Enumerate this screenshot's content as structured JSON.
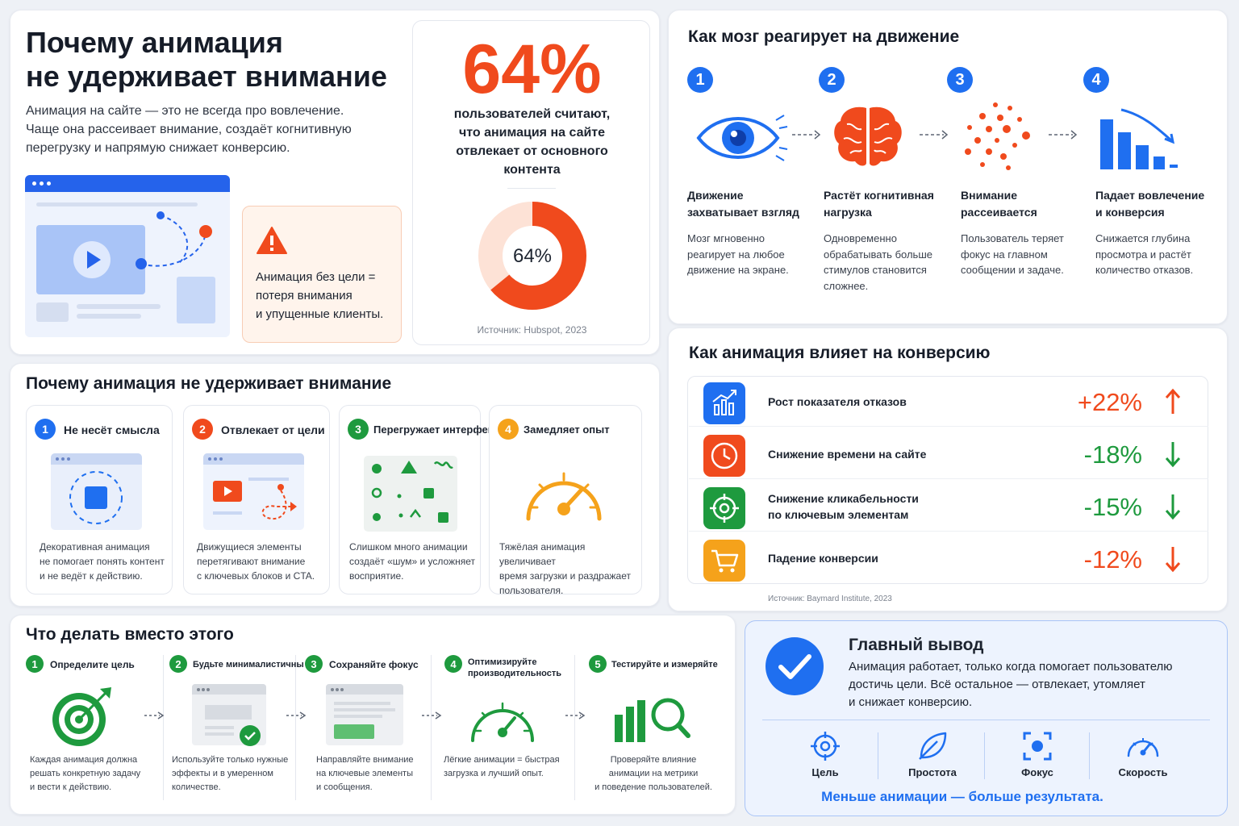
{
  "intro": {
    "title_line1": "Почему анимация",
    "title_line2": "не удерживает внимание",
    "desc_line1": "Анимация на сайте — это не всегда про вовлечение.",
    "desc_line2": "Чаще она рассеивает внимание, создаёт когнитивную",
    "desc_line3": "перегрузку и напрямую снижает конверсию.",
    "warning_line1": "Анимация без цели =",
    "warning_line2": "потеря внимания",
    "warning_line3": "и упущенные клиенты."
  },
  "stat": {
    "big": "64%",
    "text_line1": "пользователей считают,",
    "text_line2": "что анимация на сайте",
    "text_line3": "отвлекает от основного",
    "text_line4": "контента",
    "donut_label": "64%",
    "donut_value": 64,
    "source": "Источник: Hubspot, 2023"
  },
  "brain": {
    "title": "Как мозг реагирует на движение",
    "steps": [
      {
        "n": "1",
        "title1": "Движение",
        "title2": "захватывает взгляд",
        "d1": "Мозг мгновенно",
        "d2": "реагирует на любое",
        "d3": "движение на экране.",
        "d4": "",
        "icon": "eye-icon"
      },
      {
        "n": "2",
        "title1": "Растёт когнитивная",
        "title2": "нагрузка",
        "d1": "Одновременно",
        "d2": "обрабатывать больше",
        "d3": "стимулов становится",
        "d4": "сложнее.",
        "icon": "brain-icon"
      },
      {
        "n": "3",
        "title1": "Внимание",
        "title2": "рассеивается",
        "d1": "Пользователь теряет",
        "d2": "фокус на главном",
        "d3": "сообщении и задаче.",
        "d4": "",
        "icon": "scatter-dots-icon"
      },
      {
        "n": "4",
        "title1": "Падает вовлечение",
        "title2": "и конверсия",
        "d1": "Снижается глубина",
        "d2": "просмотра и растёт",
        "d3": "количество отказов.",
        "d4": "",
        "icon": "declining-bars-icon"
      }
    ]
  },
  "reasons": {
    "title": "Почему анимация не удерживает внимание",
    "items": [
      {
        "n": "1",
        "title": "Не несёт смысла",
        "d1": "Декоративная анимация",
        "d2": "не помогает понять контент",
        "d3": "и не ведёт к действию.",
        "color": "#1f6ff0"
      },
      {
        "n": "2",
        "title": "Отвлекает от цели",
        "d1": "Движущиеся элементы",
        "d2": "перетягивают внимание",
        "d3": "с ключевых блоков и CTA.",
        "color": "#f04a1d"
      },
      {
        "n": "3",
        "title": "Перегружает интерфейс",
        "d1": "Слишком много анимации",
        "d2": "создаёт «шум» и усложняет",
        "d3": "восприятие.",
        "color": "#1e9a3e"
      },
      {
        "n": "4",
        "title": "Замедляет опыт",
        "d1": "Тяжёлая анимация увеличивает",
        "d2": "время загрузки и раздражает",
        "d3": "пользователя.",
        "color": "#f5a21b"
      }
    ]
  },
  "conversion": {
    "title": "Как анимация влияет на конверсию",
    "rows": [
      {
        "l1": "Рост показателя отказов",
        "l2": "",
        "value": "+22%",
        "dir": "up",
        "color": "#f04a1d",
        "icon_bg": "#1f6ff0",
        "icon": "chart-growth-icon"
      },
      {
        "l1": "Снижение времени на сайте",
        "l2": "",
        "value": "-18%",
        "dir": "down",
        "color": "#1e9a3e",
        "icon_bg": "#f04a1d",
        "icon": "clock-icon"
      },
      {
        "l1": "Снижение кликабельности",
        "l2": "по ключевым элементам",
        "value": "-15%",
        "dir": "down",
        "color": "#1e9a3e",
        "icon_bg": "#1e9a3e",
        "icon": "target-icon"
      },
      {
        "l1": "Падение конверсии",
        "l2": "",
        "value": "-12%",
        "dir": "down",
        "color": "#f04a1d",
        "icon_bg": "#f5a21b",
        "icon": "cart-icon"
      }
    ],
    "source": "Источник: Baymard Institute, 2023"
  },
  "todo": {
    "title": "Что делать вместо этого",
    "steps": [
      {
        "n": "1",
        "t1": "Определите цель",
        "t2": "",
        "d1": "Каждая анимация должна",
        "d2": "решать конкретную задачу",
        "d3": "и вести к действию."
      },
      {
        "n": "2",
        "t1": "Будьте минималистичны",
        "t2": "",
        "d1": "Используйте только нужные",
        "d2": "эффекты и в умеренном",
        "d3": "количестве."
      },
      {
        "n": "3",
        "t1": "Сохраняйте фокус",
        "t2": "",
        "d1": "Направляйте внимание",
        "d2": "на ключевые элементы",
        "d3": "и сообщения."
      },
      {
        "n": "4",
        "t1": "Оптимизируйте",
        "t2": "производительность",
        "d1": "Лёгкие анимации = быстрая",
        "d2": "загрузка и лучший опыт.",
        "d3": ""
      },
      {
        "n": "5",
        "t1": "Тестируйте и измеряйте",
        "t2": "",
        "d1": "Проверяйте влияние",
        "d2": "анимации на метрики",
        "d3": "и поведение пользователей."
      }
    ]
  },
  "summary": {
    "title": "Главный вывод",
    "line1": "Анимация работает, только когда помогает пользователю",
    "line2": "достичь цели. Всё остальное — отвлекает, утомляет",
    "line3": "и снижает конверсию.",
    "items": [
      {
        "label": "Цель",
        "icon": "crosshair-icon"
      },
      {
        "label": "Простота",
        "icon": "leaf-icon"
      },
      {
        "label": "Фокус",
        "icon": "focus-icon"
      },
      {
        "label": "Скорость",
        "icon": "speedometer-icon"
      }
    ],
    "tagline": "Меньше анимации — больше результата."
  }
}
